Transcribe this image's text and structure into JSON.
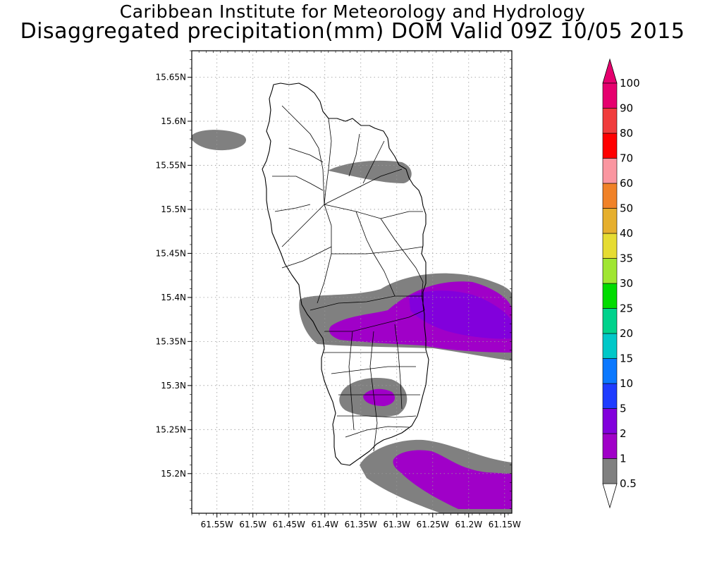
{
  "title": {
    "line1": "Caribbean Institute for Meteorology and Hydrology",
    "line2": "Disaggregated precipitation(mm) DOM Valid 09Z 10/05 2015"
  },
  "axes": {
    "lon_ticks": [
      "61.55W",
      "61.5W",
      "61.45W",
      "61.4W",
      "61.35W",
      "61.3W",
      "61.25W",
      "61.2W",
      "61.15W"
    ],
    "lat_ticks": [
      "15.65N",
      "15.6N",
      "15.55N",
      "15.5N",
      "15.45N",
      "15.4N",
      "15.35N",
      "15.3N",
      "15.25N",
      "15.2N"
    ],
    "lon_range": [
      -61.585,
      -61.14
    ],
    "lat_range": [
      15.155,
      15.68
    ],
    "grid": true
  },
  "colorbar": {
    "labels": [
      "0.5",
      "1",
      "2",
      "5",
      "10",
      "15",
      "20",
      "25",
      "30",
      "35",
      "40",
      "50",
      "60",
      "70",
      "80",
      "90",
      "100"
    ],
    "colors": [
      "#808080",
      "#a000c8",
      "#8200dc",
      "#1e3cff",
      "#0a78ff",
      "#00c8c8",
      "#00d28c",
      "#00dc00",
      "#a0e632",
      "#e6dc32",
      "#e6af2d",
      "#f08228",
      "#fa96a0",
      "#ff0000",
      "#f03c3c",
      "#e6006e"
    ],
    "below_color": "#ffffff",
    "above_color": "#e6006e"
  },
  "precip_colors": {
    "c0_5": "#808080",
    "c1": "#a000c8",
    "c2": "#8200dc"
  }
}
